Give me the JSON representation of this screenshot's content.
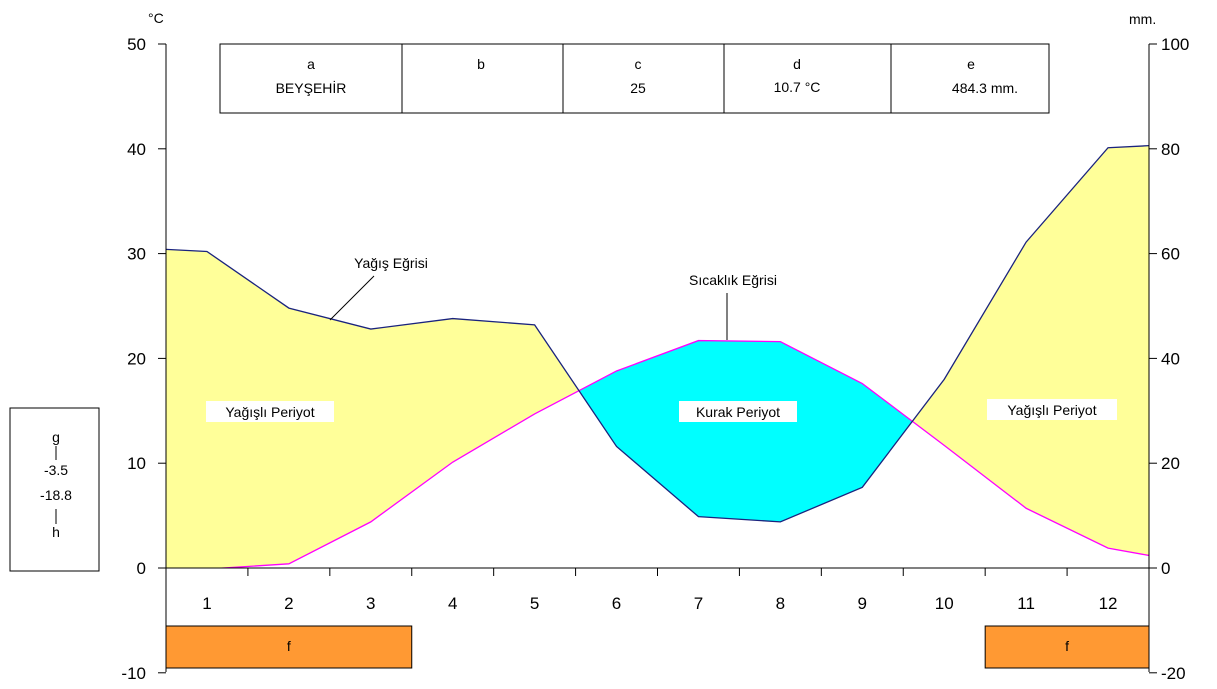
{
  "chart_data": {
    "type": "area",
    "left_axis": {
      "unit": "°C",
      "ticks": [
        "50",
        "40",
        "30",
        "20",
        "10",
        "0",
        "-10"
      ],
      "range": [
        -10,
        50
      ]
    },
    "right_axis": {
      "unit": "mm.",
      "ticks": [
        "100",
        "80",
        "60",
        "40",
        "20",
        "0",
        "-20"
      ],
      "range": [
        -20,
        100
      ]
    },
    "months": [
      "1",
      "2",
      "3",
      "4",
      "5",
      "6",
      "7",
      "8",
      "9",
      "10",
      "11",
      "12"
    ],
    "series": [
      {
        "name": "Yağış Eğrisi",
        "axis": "right",
        "color": "#1a237e",
        "x": [
          0.5,
          1,
          2,
          3,
          4,
          5,
          6,
          7,
          8,
          9,
          10,
          11,
          12,
          12.5
        ],
        "values": [
          60.8,
          60.4,
          49.6,
          45.6,
          47.6,
          46.4,
          23.2,
          9.8,
          8.8,
          15.4,
          36.0,
          62.2,
          80.2,
          80.6
        ]
      },
      {
        "name": "Sıcaklık Eğrisi",
        "axis": "left",
        "color": "#ff00ff",
        "x": [
          0.5,
          1,
          2,
          3,
          4,
          5,
          6,
          7,
          8,
          9,
          10,
          11,
          12,
          12.5
        ],
        "values": [
          -0.4,
          -0.1,
          0.4,
          4.4,
          10.1,
          14.7,
          18.8,
          21.7,
          21.6,
          17.6,
          11.7,
          5.7,
          1.9,
          1.2
        ]
      }
    ],
    "periods": [
      {
        "label": "Yağışlı Periyot",
        "fill": "#ffff99"
      },
      {
        "label": "Kurak Periyot",
        "fill": "#00ffff"
      },
      {
        "label": "Yağışlı Periyot",
        "fill": "#ffff99"
      }
    ],
    "info_table": [
      {
        "letter": "a",
        "value": "BEYŞEHİR"
      },
      {
        "letter": "b",
        "value": ""
      },
      {
        "letter": "c",
        "value": "25"
      },
      {
        "letter": "d",
        "value": "10.7 °C"
      },
      {
        "letter": "e",
        "value": "484.3 mm."
      }
    ],
    "side_box": {
      "top_letter": "g",
      "value_1": "-3.5",
      "value_2": "-18.8",
      "bottom_letter": "h"
    },
    "frost_periods": [
      {
        "label": "f",
        "months_from": 0.5,
        "months_to": 3.5,
        "fill": "#ff9933"
      },
      {
        "label": "f",
        "months_from": 10.5,
        "months_to": 12.5,
        "fill": "#ff9933"
      }
    ],
    "colors": {
      "wet": "#ffff99",
      "dry": "#00ffff",
      "frost": "#ff9933"
    }
  }
}
